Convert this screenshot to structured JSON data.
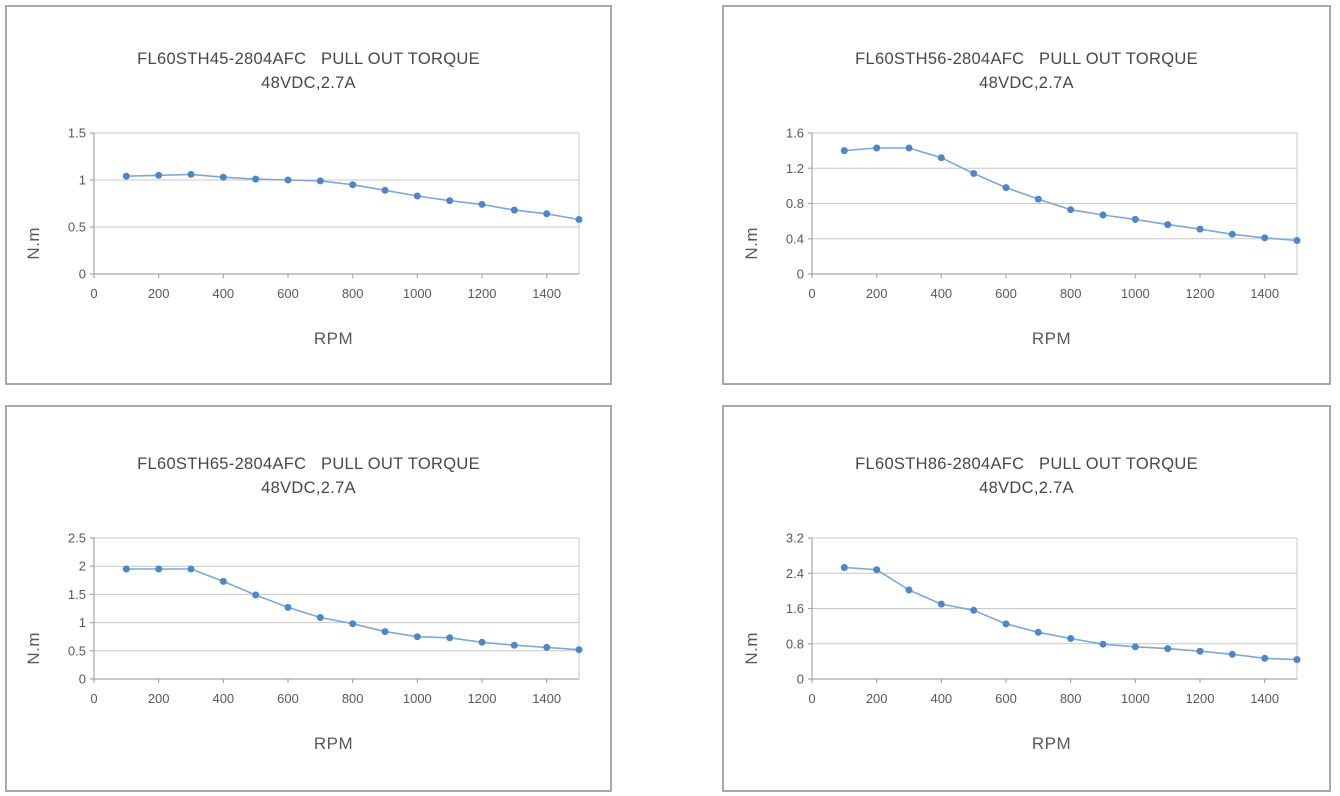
{
  "page": {
    "background": "#ffffff",
    "panel_border_color": "#a9a9ad"
  },
  "style": {
    "grid_color": "#c8c8c8",
    "axis_color": "#a6a6a6",
    "tick_text_color": "#595959",
    "title_text_color": "#474747"
  },
  "chart_data": [
    {
      "type": "line",
      "title": "FL60STH45-2804AFC   PULL OUT TORQUE",
      "subtitle": "48VDC,2.7A",
      "xlabel": "RPM",
      "ylabel": "N.m",
      "x": [
        100,
        200,
        300,
        400,
        500,
        600,
        700,
        800,
        900,
        1000,
        1100,
        1200,
        1300,
        1400,
        1500
      ],
      "y": [
        1.04,
        1.05,
        1.06,
        1.03,
        1.01,
        1.0,
        0.99,
        0.95,
        0.89,
        0.83,
        0.78,
        0.74,
        0.68,
        0.64,
        0.58
      ],
      "xlim": [
        0,
        1500
      ],
      "ylim": [
        0,
        1.5
      ],
      "xticks": [
        0,
        200,
        400,
        600,
        800,
        1000,
        1200,
        1400
      ],
      "yticks": [
        0,
        0.5,
        1,
        1.5
      ],
      "ytick_labels": [
        "0",
        "0.5",
        "1",
        "1.5"
      ],
      "grid": true,
      "legend": "none",
      "line_color": "#7fa8d6",
      "marker_color": "#4e87c4"
    },
    {
      "type": "line",
      "title": "FL60STH56-2804AFC   PULL OUT TORQUE",
      "subtitle": "48VDC,2.7A",
      "xlabel": "RPM",
      "ylabel": "N.m",
      "x": [
        100,
        200,
        300,
        400,
        500,
        600,
        700,
        800,
        900,
        1000,
        1100,
        1200,
        1300,
        1400,
        1500
      ],
      "y": [
        1.4,
        1.43,
        1.43,
        1.32,
        1.14,
        0.98,
        0.85,
        0.73,
        0.67,
        0.62,
        0.56,
        0.51,
        0.45,
        0.41,
        0.38
      ],
      "xlim": [
        0,
        1500
      ],
      "ylim": [
        0,
        1.6
      ],
      "xticks": [
        0,
        200,
        400,
        600,
        800,
        1000,
        1200,
        1400
      ],
      "yticks": [
        0,
        0.4,
        0.8,
        1.2,
        1.6
      ],
      "ytick_labels": [
        "0",
        "0.4",
        "0.8",
        "1.2",
        "1.6"
      ],
      "grid": true,
      "legend": "none",
      "line_color": "#7fa8d6",
      "marker_color": "#4e87c4"
    },
    {
      "type": "line",
      "title": "FL60STH65-2804AFC   PULL OUT TORQUE",
      "subtitle": "48VDC,2.7A",
      "xlabel": "RPM",
      "ylabel": "N.m",
      "x": [
        100,
        200,
        300,
        400,
        500,
        600,
        700,
        800,
        900,
        1000,
        1100,
        1200,
        1300,
        1400,
        1500
      ],
      "y": [
        1.95,
        1.95,
        1.95,
        1.73,
        1.49,
        1.27,
        1.09,
        0.98,
        0.84,
        0.75,
        0.73,
        0.65,
        0.6,
        0.56,
        0.52
      ],
      "xlim": [
        0,
        1500
      ],
      "ylim": [
        0,
        2.5
      ],
      "xticks": [
        0,
        200,
        400,
        600,
        800,
        1000,
        1200,
        1400
      ],
      "yticks": [
        0,
        0.5,
        1,
        1.5,
        2,
        2.5
      ],
      "ytick_labels": [
        "0",
        "0.5",
        "1",
        "1.5",
        "2",
        "2.5"
      ],
      "grid": true,
      "legend": "none",
      "line_color": "#7fa8d6",
      "marker_color": "#4e87c4"
    },
    {
      "type": "line",
      "title": "FL60STH86-2804AFC   PULL OUT TORQUE",
      "subtitle": "48VDC,2.7A",
      "xlabel": "RPM",
      "ylabel": "N.m",
      "x": [
        100,
        200,
        300,
        400,
        500,
        600,
        700,
        800,
        900,
        1000,
        1100,
        1200,
        1300,
        1400,
        1500
      ],
      "y": [
        2.53,
        2.48,
        2.02,
        1.7,
        1.56,
        1.25,
        1.06,
        0.92,
        0.79,
        0.73,
        0.69,
        0.63,
        0.56,
        0.47,
        0.44
      ],
      "xlim": [
        0,
        1500
      ],
      "ylim": [
        0,
        3.2
      ],
      "xticks": [
        0,
        200,
        400,
        600,
        800,
        1000,
        1200,
        1400
      ],
      "yticks": [
        0,
        0.8,
        1.6,
        2.4,
        3.2
      ],
      "ytick_labels": [
        "0",
        "0.8",
        "1.6",
        "2.4",
        "3.2"
      ],
      "grid": true,
      "legend": "none",
      "line_color": "#7fa8d6",
      "marker_color": "#4e87c4"
    }
  ]
}
